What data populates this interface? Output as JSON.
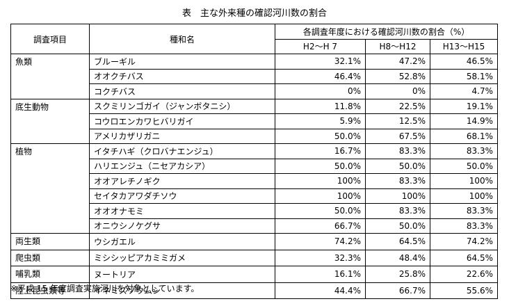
{
  "title": "表　主な外来種の確認河川数の割合",
  "header": {
    "category": "調査項目",
    "species": "種和名",
    "group": "各調査年度における確認河川数の割合（%）",
    "periods": [
      "H2～H 7",
      "H8～H12",
      "H13～H15"
    ]
  },
  "groups": [
    {
      "category": "魚類",
      "rows": [
        {
          "name": "ブルーギル",
          "values": [
            "32.1%",
            "47.2%",
            "46.5%"
          ]
        },
        {
          "name": "オオクチバス",
          "values": [
            "46.4%",
            "52.8%",
            "58.1%"
          ]
        },
        {
          "name": "コクチバス",
          "values": [
            "0%",
            "0%",
            "4.7%"
          ]
        }
      ]
    },
    {
      "category": "底生動物",
      "rows": [
        {
          "name": "スクミリンゴガイ（ジャンボタニシ）",
          "values": [
            "11.8%",
            "22.5%",
            "19.1%"
          ]
        },
        {
          "name": "コウロエンカワヒバリガイ",
          "values": [
            "5.9%",
            "12.5%",
            "14.9%"
          ]
        },
        {
          "name": "アメリカザリガニ",
          "values": [
            "50.0%",
            "67.5%",
            "68.1%"
          ]
        }
      ]
    },
    {
      "category": "植物",
      "rows": [
        {
          "name": "イタチハギ（クロバナエンジュ）",
          "values": [
            "16.7%",
            "83.3%",
            "83.3%"
          ]
        },
        {
          "name": "ハリエンジュ（ニセアカシア）",
          "values": [
            "50.0%",
            "50.0%",
            "50.0%"
          ]
        },
        {
          "name": "オオアレチノギク",
          "values": [
            "100%",
            "83.3%",
            "100%"
          ]
        },
        {
          "name": "セイタカアワダチソウ",
          "values": [
            "100%",
            "100%",
            "100%"
          ]
        },
        {
          "name": "オオオナモミ",
          "values": [
            "50.0%",
            "83.3%",
            "83.3%"
          ]
        },
        {
          "name": "オニウシノケグサ",
          "values": [
            "66.7%",
            "50.0%",
            "83.3%"
          ]
        }
      ]
    },
    {
      "category": "両生類",
      "rows": [
        {
          "name": "ウシガエル",
          "values": [
            "74.2%",
            "64.5%",
            "74.2%"
          ]
        }
      ]
    },
    {
      "category": "爬虫類",
      "rows": [
        {
          "name": "ミシシッピアカミミガメ",
          "values": [
            "32.3%",
            "48.4%",
            "64.5%"
          ]
        }
      ]
    },
    {
      "category": "哺乳類",
      "rows": [
        {
          "name": "ヌートリア",
          "values": [
            "16.1%",
            "25.8%",
            "22.6%"
          ]
        }
      ]
    },
    {
      "category": "陸上昆虫類等",
      "rows": [
        {
          "name": "イネミズゾウムシ",
          "values": [
            "44.4%",
            "66.7%",
            "55.6%"
          ]
        }
      ]
    }
  ],
  "note": "※平成 15 年度調査実施河川を対象としています。"
}
